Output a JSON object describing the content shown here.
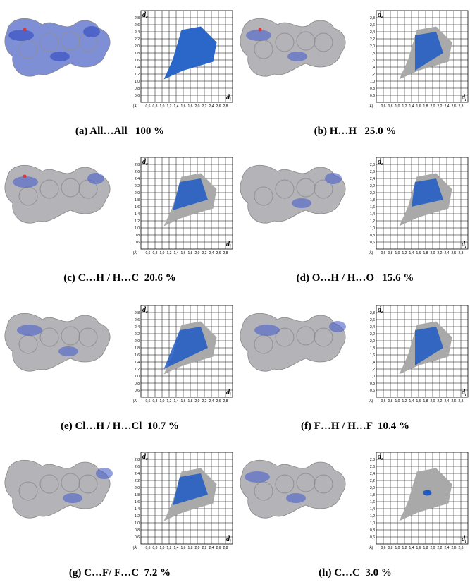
{
  "axis": {
    "x_ticks": [
      "0,6",
      "0,8",
      "1,0",
      "1,2",
      "1,4",
      "1,6",
      "1,8",
      "2,0",
      "2,2",
      "2,4",
      "2,6",
      "2,8"
    ],
    "y_ticks": [
      "0,6",
      "0,8",
      "1,0",
      "1,2",
      "1,4",
      "1,6",
      "1,8",
      "2,0",
      "2,2",
      "2,4",
      "2,6",
      "2,8"
    ],
    "x_label": "d",
    "x_sub": "i",
    "y_label": "d",
    "y_sub": "e",
    "unit": "(Å)"
  },
  "panels": [
    {
      "caption": "(a) All…All   100 %"
    },
    {
      "caption": "(b) H…H   25.0 %"
    },
    {
      "caption": "(c) C…H / H…C  20.6 %"
    },
    {
      "caption": "(d) O…H / H…O   15.6 %"
    },
    {
      "caption": "(e) Cl…H / H…Cl  10.7 %"
    },
    {
      "caption": "(f) F…H / H…F  10.4 %"
    },
    {
      "caption": "(g) C…F/ F…C  7.2 %"
    },
    {
      "caption": "(h) C…C  3.0 %"
    }
  ]
}
